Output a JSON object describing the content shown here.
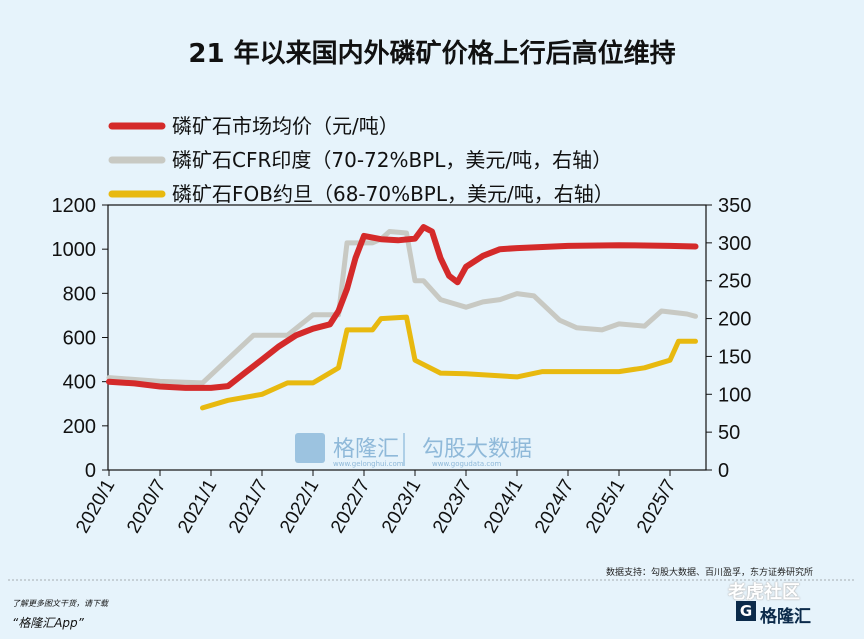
{
  "chart_data": {
    "type": "line",
    "title": "21 年以来国内外磷矿价格上行后高位维持",
    "x_tick_labels": [
      "2020/1",
      "2020/7",
      "2021/1",
      "2021/7",
      "2022/1",
      "2022/7",
      "2023/1",
      "2023/7",
      "2024/1",
      "2024/7",
      "2025/1",
      "2025/7"
    ],
    "left_axis": {
      "ticks": [
        0,
        200,
        400,
        600,
        800,
        1000,
        1200
      ],
      "ylim": [
        0,
        1200
      ]
    },
    "right_axis": {
      "ticks": [
        0,
        50,
        100,
        150,
        200,
        250,
        300,
        350
      ],
      "ylim": [
        0,
        350
      ]
    },
    "series": [
      {
        "name": "磷矿石市场均价（元/吨）",
        "axis": "left",
        "color": "#d42a2a",
        "points": [
          [
            "2020/1",
            400
          ],
          [
            "2020/4",
            392
          ],
          [
            "2020/7",
            378
          ],
          [
            "2020/10",
            372
          ],
          [
            "2021/1",
            372
          ],
          [
            "2021/3",
            380
          ],
          [
            "2021/5",
            440
          ],
          [
            "2021/7",
            500
          ],
          [
            "2021/9",
            560
          ],
          [
            "2021/11",
            610
          ],
          [
            "2022/1",
            640
          ],
          [
            "2022/3",
            660
          ],
          [
            "2022/4",
            720
          ],
          [
            "2022/5",
            820
          ],
          [
            "2022/6",
            960
          ],
          [
            "2022/7",
            1060
          ],
          [
            "2022/9",
            1045
          ],
          [
            "2022/11",
            1040
          ],
          [
            "2023/1",
            1048
          ],
          [
            "2023/2",
            1100
          ],
          [
            "2023/3",
            1080
          ],
          [
            "2023/4",
            960
          ],
          [
            "2023/5",
            880
          ],
          [
            "2023/6",
            850
          ],
          [
            "2023/7",
            920
          ],
          [
            "2023/9",
            970
          ],
          [
            "2023/11",
            1000
          ],
          [
            "2024/1",
            1005
          ],
          [
            "2024/4",
            1010
          ],
          [
            "2024/7",
            1015
          ],
          [
            "2025/1",
            1018
          ],
          [
            "2025/7",
            1015
          ],
          [
            "2025/10",
            1012
          ]
        ]
      },
      {
        "name": "磷矿石CFR印度（70-72%BPL，美元/吨，右轴）",
        "axis": "right",
        "color": "#c8c9c3",
        "points": [
          [
            "2020/1",
            122
          ],
          [
            "2020/7",
            117
          ],
          [
            "2020/12",
            115
          ],
          [
            "2021/6",
            178
          ],
          [
            "2021/10",
            178
          ],
          [
            "2022/1",
            205
          ],
          [
            "2022/4",
            205
          ],
          [
            "2022/5",
            300
          ],
          [
            "2022/8",
            300
          ],
          [
            "2022/9",
            305
          ],
          [
            "2022/10",
            315
          ],
          [
            "2022/12",
            313
          ],
          [
            "2023/1",
            250
          ],
          [
            "2023/2",
            250
          ],
          [
            "2023/4",
            225
          ],
          [
            "2023/7",
            215
          ],
          [
            "2023/9",
            222
          ],
          [
            "2023/11",
            225
          ],
          [
            "2024/1",
            233
          ],
          [
            "2024/3",
            230
          ],
          [
            "2024/6",
            198
          ],
          [
            "2024/8",
            188
          ],
          [
            "2024/11",
            185
          ],
          [
            "2025/1",
            193
          ],
          [
            "2025/4",
            190
          ],
          [
            "2025/6",
            210
          ],
          [
            "2025/9",
            206
          ],
          [
            "2025/10",
            203
          ]
        ]
      },
      {
        "name": "磷矿石FOB约旦（68-70%BPL，美元/吨，右轴）",
        "axis": "right",
        "color": "#e8b90f",
        "points": [
          [
            "2020/12",
            82
          ],
          [
            "2021/3",
            92
          ],
          [
            "2021/7",
            100
          ],
          [
            "2021/10",
            115
          ],
          [
            "2022/1",
            115
          ],
          [
            "2022/4",
            135
          ],
          [
            "2022/5",
            185
          ],
          [
            "2022/8",
            185
          ],
          [
            "2022/9",
            200
          ],
          [
            "2022/12",
            202
          ],
          [
            "2023/1",
            145
          ],
          [
            "2023/4",
            128
          ],
          [
            "2023/7",
            127
          ],
          [
            "2024/1",
            123
          ],
          [
            "2024/4",
            130
          ],
          [
            "2024/7",
            130
          ],
          [
            "2025/1",
            130
          ],
          [
            "2025/4",
            135
          ],
          [
            "2025/7",
            145
          ],
          [
            "2025/8",
            170
          ],
          [
            "2025/10",
            170
          ]
        ]
      }
    ]
  },
  "watermark": {
    "left": "格隆汇",
    "left_sub": "www.gelonghui.com",
    "right": "勾股大数据",
    "right_sub": "www.gogudata.com"
  },
  "source_text": "数据支持：勾股大数据、百川盈孚，东方证券研究所",
  "footer": {
    "line1": "了解更多图文干货，请下载",
    "line2": "“格隆汇App”"
  },
  "corner": {
    "tiger": "老虎社区",
    "brand": "格隆汇"
  }
}
